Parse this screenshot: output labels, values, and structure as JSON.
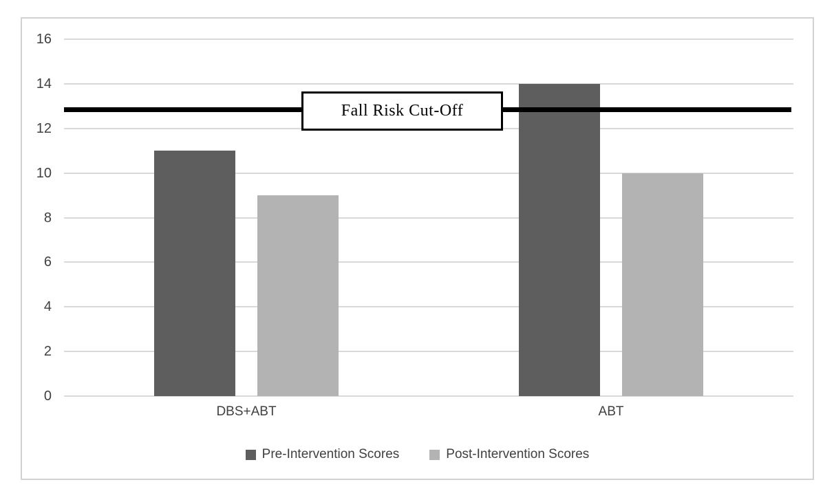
{
  "figure": {
    "background": "#ffffff",
    "frame_border_color": "#d2d2d2"
  },
  "chart_data": {
    "type": "bar",
    "title": "",
    "xlabel": "",
    "ylabel": "",
    "categories": [
      "DBS+ABT",
      "ABT"
    ],
    "series": [
      {
        "name": "Pre-Intervention Scores",
        "color": "#5e5e5e",
        "values": [
          11,
          14
        ]
      },
      {
        "name": "Post-Intervention Scores",
        "color": "#b3b3b3",
        "values": [
          9,
          10
        ]
      }
    ],
    "ylim": [
      0,
      16
    ],
    "y_ticks": [
      0,
      2,
      4,
      6,
      8,
      10,
      12,
      14,
      16
    ],
    "grid": true,
    "gridline_color": "#d9d9d9",
    "tick_label_color": "#404040",
    "legend_position": "bottom",
    "reference_line": {
      "label": "Fall Risk Cut-Off",
      "value": 12.85,
      "color": "#000000",
      "label_box": {
        "fill": "#ffffff",
        "border_color": "#000000"
      }
    }
  }
}
